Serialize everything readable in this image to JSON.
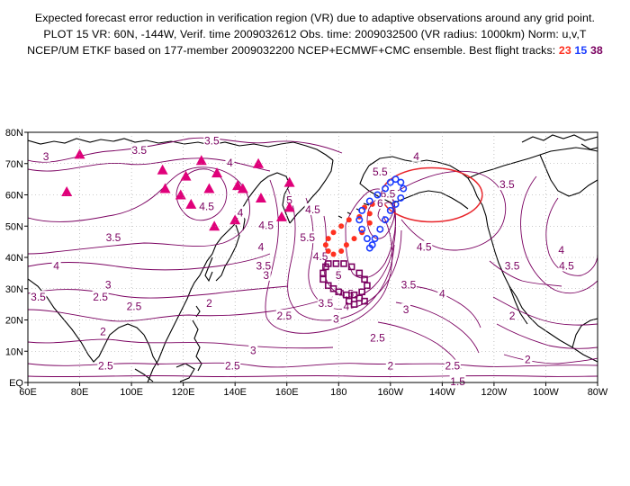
{
  "header": {
    "line1": "Expected forecast error reduction in verification region (VR) due to adaptive observations around any grid point.",
    "line2": "PLOT 15 VR: 60N, -144W, Verif. time 2009032612 Obs. time: 2009032500 (VR radius: 1000km) Norm: u,v,T",
    "line3_prefix": "NCEP/UM ETKF based on 177-member 2009032200 NCEP+ECMWF+CMC ensemble. Best flight tracks: ",
    "track_a": "23",
    "track_b": "15",
    "track_c": "38"
  },
  "map": {
    "lon_range": [
      60,
      280
    ],
    "lat_range": [
      0,
      80
    ],
    "x_ticks": [
      {
        "lon": 60,
        "label": "60E"
      },
      {
        "lon": 80,
        "label": "80E"
      },
      {
        "lon": 100,
        "label": "100E"
      },
      {
        "lon": 120,
        "label": "120E"
      },
      {
        "lon": 140,
        "label": "140E"
      },
      {
        "lon": 160,
        "label": "160E"
      },
      {
        "lon": 180,
        "label": "180"
      },
      {
        "lon": 200,
        "label": "160W"
      },
      {
        "lon": 220,
        "label": "140W"
      },
      {
        "lon": 240,
        "label": "120W"
      },
      {
        "lon": 260,
        "label": "100W"
      },
      {
        "lon": 280,
        "label": "80W"
      }
    ],
    "y_ticks": [
      {
        "lat": 0,
        "label": "EQ"
      },
      {
        "lat": 10,
        "label": "10N"
      },
      {
        "lat": 20,
        "label": "20N"
      },
      {
        "lat": 30,
        "label": "30N"
      },
      {
        "lat": 40,
        "label": "40N"
      },
      {
        "lat": 50,
        "label": "50N"
      },
      {
        "lat": 60,
        "label": "60N"
      },
      {
        "lat": 70,
        "label": "70N"
      },
      {
        "lat": 80,
        "label": "80N"
      }
    ],
    "verification_region": {
      "center_lon": 216,
      "center_lat": 60,
      "color": "#e8242a"
    },
    "colors": {
      "contour": "#7a0060",
      "coast": "#000000",
      "raob_marker": "#e0007a",
      "track_23": "#ff3020",
      "track_15": "#1a3cff",
      "track_38": "#7a0060"
    },
    "contour_labels": [
      {
        "text": "3",
        "lon": 67,
        "lat": 72
      },
      {
        "text": "3.5",
        "lon": 103,
        "lat": 74
      },
      {
        "text": "3.5",
        "lon": 131,
        "lat": 77
      },
      {
        "text": "4",
        "lon": 138,
        "lat": 70
      },
      {
        "text": "4.5",
        "lon": 129,
        "lat": 56
      },
      {
        "text": "4",
        "lon": 142,
        "lat": 54
      },
      {
        "text": "4.5",
        "lon": 170,
        "lat": 55
      },
      {
        "text": "5",
        "lon": 161,
        "lat": 58
      },
      {
        "text": "5.5",
        "lon": 168,
        "lat": 46
      },
      {
        "text": "3.5",
        "lon": 93,
        "lat": 46
      },
      {
        "text": "4",
        "lon": 71,
        "lat": 37
      },
      {
        "text": "3.5",
        "lon": 64,
        "lat": 27
      },
      {
        "text": "3",
        "lon": 91,
        "lat": 31
      },
      {
        "text": "2.5",
        "lon": 88,
        "lat": 27
      },
      {
        "text": "2",
        "lon": 89,
        "lat": 16
      },
      {
        "text": "2.5",
        "lon": 101,
        "lat": 24
      },
      {
        "text": "2.5",
        "lon": 90,
        "lat": 5
      },
      {
        "text": "2.5",
        "lon": 139,
        "lat": 5
      },
      {
        "text": "3",
        "lon": 147,
        "lat": 10
      },
      {
        "text": "2",
        "lon": 130,
        "lat": 25
      },
      {
        "text": "2.5",
        "lon": 159,
        "lat": 21
      },
      {
        "text": "3",
        "lon": 152,
        "lat": 34
      },
      {
        "text": "3.5",
        "lon": 151,
        "lat": 37
      },
      {
        "text": "4",
        "lon": 150,
        "lat": 43
      },
      {
        "text": "4.5",
        "lon": 152,
        "lat": 50
      },
      {
        "text": "6.5",
        "lon": 199,
        "lat": 60
      },
      {
        "text": "6",
        "lon": 196,
        "lat": 57
      },
      {
        "text": "5.5",
        "lon": 196,
        "lat": 67
      },
      {
        "text": "4.5",
        "lon": 213,
        "lat": 43
      },
      {
        "text": "3.5",
        "lon": 207,
        "lat": 31
      },
      {
        "text": "4",
        "lon": 220,
        "lat": 28
      },
      {
        "text": "3",
        "lon": 206,
        "lat": 23
      },
      {
        "text": "2.5",
        "lon": 195,
        "lat": 14
      },
      {
        "text": "2",
        "lon": 200,
        "lat": 5
      },
      {
        "text": "2.5",
        "lon": 224,
        "lat": 5
      },
      {
        "text": "2",
        "lon": 247,
        "lat": 21
      },
      {
        "text": "2",
        "lon": 253,
        "lat": 7
      },
      {
        "text": "1.5",
        "lon": 226,
        "lat": 0
      },
      {
        "text": "3.5",
        "lon": 247,
        "lat": 37
      },
      {
        "text": "4",
        "lon": 266,
        "lat": 42
      },
      {
        "text": "4.5",
        "lon": 268,
        "lat": 37
      },
      {
        "text": "3.5",
        "lon": 245,
        "lat": 63
      },
      {
        "text": "4",
        "lon": 210,
        "lat": 72
      },
      {
        "text": "4.5",
        "lon": 173,
        "lat": 40
      },
      {
        "text": "5",
        "lon": 180,
        "lat": 34
      },
      {
        "text": "4.5",
        "lon": 183,
        "lat": 28
      },
      {
        "text": "4",
        "lon": 183,
        "lat": 24
      },
      {
        "text": "3.5",
        "lon": 175,
        "lat": 25
      },
      {
        "text": "3",
        "lon": 179,
        "lat": 20
      }
    ],
    "raob_sites": [
      [
        80,
        73
      ],
      [
        75,
        61
      ],
      [
        112,
        68
      ],
      [
        113,
        62
      ],
      [
        121,
        66
      ],
      [
        119,
        60
      ],
      [
        123,
        57
      ],
      [
        127,
        71
      ],
      [
        130,
        62
      ],
      [
        133,
        67
      ],
      [
        132,
        50
      ],
      [
        140,
        52
      ],
      [
        143,
        62
      ],
      [
        141,
        63
      ],
      [
        150,
        59
      ],
      [
        149,
        70
      ],
      [
        158,
        53
      ],
      [
        161,
        56
      ],
      [
        161,
        64
      ]
    ],
    "track_23": [
      [
        188,
        53
      ],
      [
        184,
        52
      ],
      [
        181,
        50
      ],
      [
        178,
        48
      ],
      [
        176,
        46
      ],
      [
        175,
        44
      ],
      [
        176,
        42
      ],
      [
        178,
        41
      ],
      [
        181,
        42
      ],
      [
        183,
        44
      ],
      [
        186,
        46
      ],
      [
        189,
        48
      ],
      [
        192,
        51
      ],
      [
        192,
        54
      ],
      [
        193,
        57
      ],
      [
        190,
        56
      ]
    ],
    "track_15": [
      [
        191,
        46
      ],
      [
        189,
        49
      ],
      [
        188,
        52
      ],
      [
        189,
        55
      ],
      [
        192,
        58
      ],
      [
        195,
        60
      ],
      [
        198,
        62
      ],
      [
        200,
        64
      ],
      [
        202,
        65
      ],
      [
        204,
        64
      ],
      [
        205,
        62
      ],
      [
        204,
        59
      ],
      [
        202,
        57
      ],
      [
        200,
        55
      ],
      [
        198,
        52
      ],
      [
        196,
        49
      ],
      [
        194,
        46
      ],
      [
        193,
        44
      ],
      [
        192,
        43
      ]
    ],
    "track_38": [
      [
        176,
        38
      ],
      [
        179,
        38
      ],
      [
        182,
        38
      ],
      [
        185,
        37
      ],
      [
        188,
        35
      ],
      [
        190,
        33
      ],
      [
        191,
        31
      ],
      [
        189,
        29
      ],
      [
        186,
        28
      ],
      [
        183,
        28
      ],
      [
        180,
        29
      ],
      [
        178,
        30
      ],
      [
        176,
        31
      ],
      [
        174,
        33
      ],
      [
        174,
        35
      ],
      [
        175,
        37
      ],
      [
        188,
        27
      ],
      [
        190,
        26
      ],
      [
        186,
        25
      ],
      [
        184,
        26
      ]
    ]
  }
}
